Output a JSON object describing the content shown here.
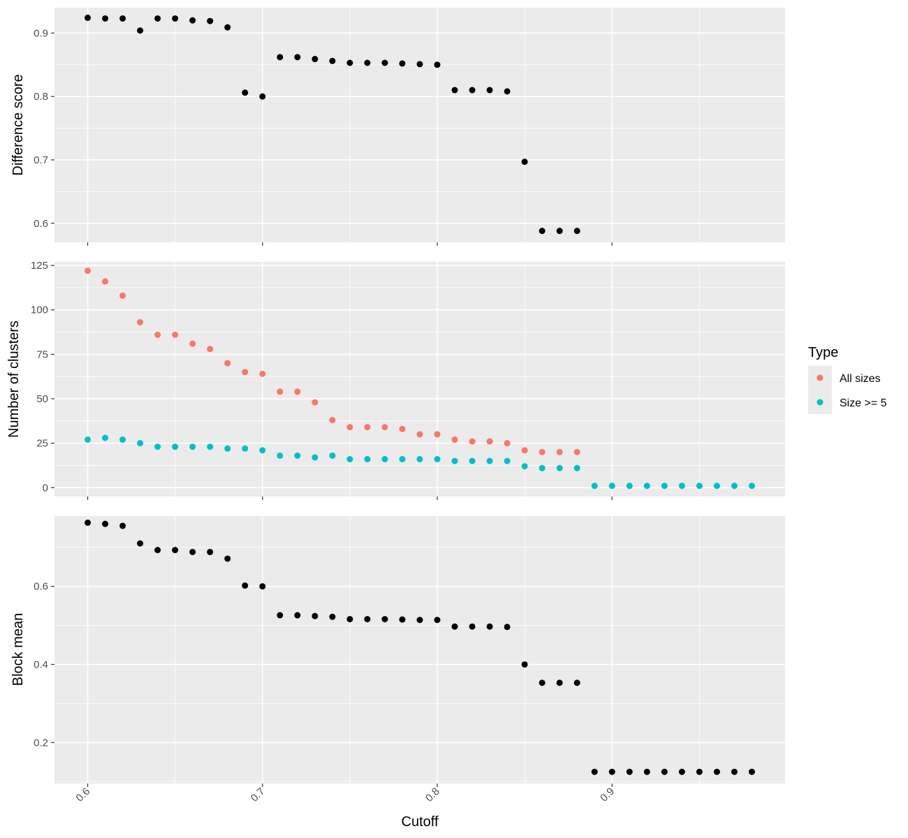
{
  "chart_data": [
    {
      "type": "scatter",
      "ylabel": "Difference score",
      "xlabel": "",
      "xlim": [
        0.581,
        0.999
      ],
      "ylim": [
        0.57,
        0.94
      ],
      "y_ticks": [
        0.6,
        0.7,
        0.8,
        0.9
      ],
      "y_tick_labels": [
        "0.6",
        "0.7",
        "0.8",
        "0.9"
      ],
      "grid": true,
      "series": [
        {
          "color": "#000000",
          "x": [
            0.6,
            0.61,
            0.62,
            0.63,
            0.64,
            0.65,
            0.66,
            0.67,
            0.68,
            0.69,
            0.7,
            0.71,
            0.72,
            0.73,
            0.74,
            0.75,
            0.76,
            0.77,
            0.78,
            0.79,
            0.8,
            0.81,
            0.82,
            0.83,
            0.84,
            0.85,
            0.86,
            0.87,
            0.88
          ],
          "y": [
            0.924,
            0.923,
            0.923,
            0.904,
            0.923,
            0.923,
            0.92,
            0.919,
            0.909,
            0.806,
            0.8,
            0.862,
            0.862,
            0.859,
            0.856,
            0.853,
            0.853,
            0.853,
            0.852,
            0.851,
            0.85,
            0.81,
            0.81,
            0.81,
            0.808,
            0.697,
            0.588,
            0.588,
            0.588
          ]
        }
      ]
    },
    {
      "type": "scatter",
      "ylabel": "Number of clusters",
      "xlabel": "",
      "xlim": [
        0.581,
        0.999
      ],
      "ylim": [
        -5,
        127
      ],
      "y_ticks": [
        0,
        25,
        50,
        75,
        100,
        125
      ],
      "y_tick_labels": [
        "0",
        "25",
        "50",
        "75",
        "100",
        "125"
      ],
      "grid": true,
      "legend": {
        "title": "Type",
        "position": "right",
        "entries": [
          {
            "label": "All sizes",
            "color": "#F8766D"
          },
          {
            "label": "Size >= 5",
            "color": "#00BFC4"
          }
        ]
      },
      "series": [
        {
          "name": "All sizes",
          "color": "#F8766D",
          "x": [
            0.6,
            0.61,
            0.62,
            0.63,
            0.64,
            0.65,
            0.66,
            0.67,
            0.68,
            0.69,
            0.7,
            0.71,
            0.72,
            0.73,
            0.74,
            0.75,
            0.76,
            0.77,
            0.78,
            0.79,
            0.8,
            0.81,
            0.82,
            0.83,
            0.84,
            0.85,
            0.86,
            0.87,
            0.88
          ],
          "y": [
            122,
            116,
            108,
            93,
            86,
            86,
            81,
            78,
            70,
            65,
            64,
            54,
            54,
            48,
            38,
            34,
            34,
            34,
            33,
            30,
            30,
            27,
            26,
            26,
            25,
            21,
            20,
            20,
            20
          ]
        },
        {
          "name": "Size >= 5",
          "color": "#00BFC4",
          "x": [
            0.6,
            0.61,
            0.62,
            0.63,
            0.64,
            0.65,
            0.66,
            0.67,
            0.68,
            0.69,
            0.7,
            0.71,
            0.72,
            0.73,
            0.74,
            0.75,
            0.76,
            0.77,
            0.78,
            0.79,
            0.8,
            0.81,
            0.82,
            0.83,
            0.84,
            0.85,
            0.86,
            0.87,
            0.88,
            0.89,
            0.9,
            0.91,
            0.92,
            0.93,
            0.94,
            0.95,
            0.96,
            0.97,
            0.98
          ],
          "y": [
            27,
            28,
            27,
            25,
            23,
            23,
            23,
            23,
            22,
            22,
            21,
            18,
            18,
            17,
            18,
            16,
            16,
            16,
            16,
            16,
            16,
            15,
            15,
            15,
            15,
            12,
            11,
            11,
            11,
            1,
            1,
            1,
            1,
            1,
            1,
            1,
            1,
            1,
            1
          ]
        }
      ]
    },
    {
      "type": "scatter",
      "ylabel": "Block mean",
      "xlabel": "Cutoff",
      "xlim": [
        0.581,
        0.999
      ],
      "ylim": [
        0.095,
        0.78
      ],
      "x_ticks": [
        0.6,
        0.7,
        0.8,
        0.9
      ],
      "x_tick_labels": [
        "0.6",
        "0.7",
        "0.8",
        "0.9"
      ],
      "y_ticks": [
        0.2,
        0.4,
        0.6
      ],
      "y_tick_labels": [
        "0.2",
        "0.4",
        "0.6"
      ],
      "grid": true,
      "series": [
        {
          "color": "#000000",
          "x": [
            0.6,
            0.61,
            0.62,
            0.63,
            0.64,
            0.65,
            0.66,
            0.67,
            0.68,
            0.69,
            0.7,
            0.71,
            0.72,
            0.73,
            0.74,
            0.75,
            0.76,
            0.77,
            0.78,
            0.79,
            0.8,
            0.81,
            0.82,
            0.83,
            0.84,
            0.85,
            0.86,
            0.87,
            0.88,
            0.89,
            0.9,
            0.91,
            0.92,
            0.93,
            0.94,
            0.95,
            0.96,
            0.97,
            0.98
          ],
          "y": [
            0.763,
            0.76,
            0.755,
            0.71,
            0.693,
            0.693,
            0.688,
            0.688,
            0.671,
            0.602,
            0.6,
            0.526,
            0.526,
            0.524,
            0.522,
            0.516,
            0.516,
            0.516,
            0.515,
            0.514,
            0.514,
            0.497,
            0.497,
            0.497,
            0.496,
            0.4,
            0.353,
            0.353,
            0.353,
            0.125,
            0.125,
            0.125,
            0.125,
            0.125,
            0.125,
            0.125,
            0.125,
            0.125,
            0.125
          ]
        }
      ]
    }
  ]
}
